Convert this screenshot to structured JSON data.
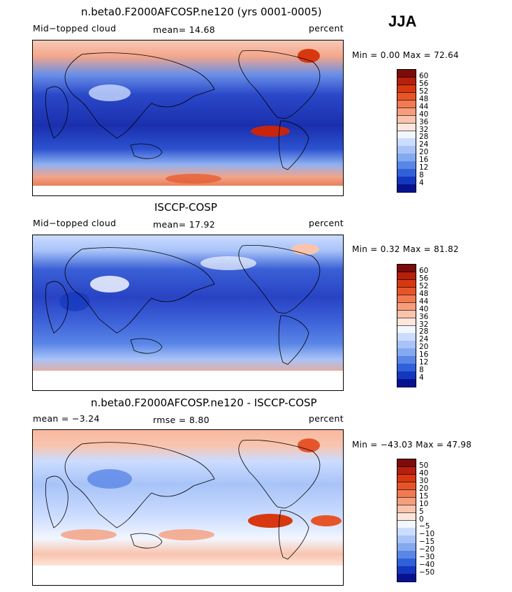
{
  "season": "JJA",
  "panels": [
    {
      "title": "n.beta0.F2000AFCOSP.ne120 (yrs 0001-0005)",
      "left_label": "Mid−topped cloud",
      "center_label": "mean=   14.68",
      "right_label": "percent",
      "minmax": "Min =    0.00 Max =   72.64",
      "colorbar": {
        "labels": [
          "60",
          "56",
          "52",
          "48",
          "44",
          "40",
          "36",
          "32",
          "28",
          "24",
          "20",
          "16",
          "12",
          "8",
          "4"
        ],
        "colors": [
          "#7d0b0b",
          "#b5200d",
          "#d8380f",
          "#e6552a",
          "#f07a52",
          "#f59d7d",
          "#f9c4ae",
          "#fde6dc",
          "#f2f6ff",
          "#cbdcff",
          "#a8c3f8",
          "#84a9ef",
          "#5a86e6",
          "#3161d8",
          "#1438bd",
          "#08128f"
        ]
      }
    },
    {
      "title": "ISCCP-COSP",
      "left_label": "Mid−topped cloud",
      "center_label": "mean=   17.92",
      "right_label": "percent",
      "minmax": "Min =    0.32 Max =   81.82",
      "colorbar": {
        "labels": [
          "60",
          "56",
          "52",
          "48",
          "44",
          "40",
          "36",
          "32",
          "28",
          "24",
          "20",
          "16",
          "12",
          "8",
          "4"
        ],
        "colors": [
          "#7d0b0b",
          "#b5200d",
          "#d8380f",
          "#e6552a",
          "#f07a52",
          "#f59d7d",
          "#f9c4ae",
          "#fde6dc",
          "#f2f6ff",
          "#cbdcff",
          "#a8c3f8",
          "#84a9ef",
          "#5a86e6",
          "#3161d8",
          "#1438bd",
          "#08128f"
        ]
      }
    },
    {
      "title": "n.beta0.F2000AFCOSP.ne120 - ISCCP-COSP",
      "left_label": "mean =   −3.24",
      "center_label": "rmse =    8.80",
      "right_label": "percent",
      "minmax": "Min = −43.03 Max =   47.98",
      "colorbar": {
        "labels": [
          "50",
          "40",
          "30",
          "20",
          "15",
          "10",
          "5",
          "0",
          "−5",
          "−10",
          "−15",
          "−20",
          "−30",
          "−40",
          "−50"
        ],
        "colors": [
          "#7d0b0b",
          "#b5200d",
          "#d8380f",
          "#e6552a",
          "#f07a52",
          "#f59d7d",
          "#f9c4ae",
          "#fde6dc",
          "#f2f6ff",
          "#cbdcff",
          "#a8c3f8",
          "#84a9ef",
          "#5a86e6",
          "#3161d8",
          "#1438bd",
          "#08128f"
        ]
      }
    }
  ]
}
